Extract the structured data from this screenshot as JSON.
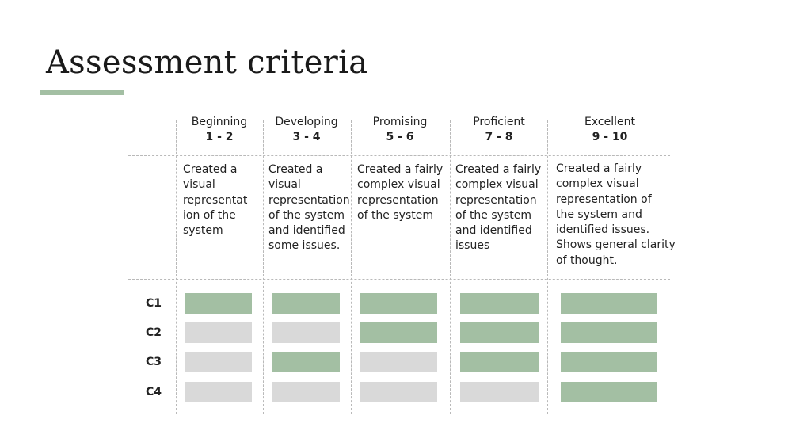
{
  "title": "Assessment criteria",
  "colors": {
    "accent": "#a3bfa3",
    "met": "#a3bfa3",
    "unmet": "#d9d9d9"
  },
  "levels": [
    {
      "label": "Beginning",
      "range": "1 - 2",
      "description": "Created a\nvisual\nrepresentat\nion of the\nsystem"
    },
    {
      "label": "Developing",
      "range": "3 - 4",
      "description": "Created a\nvisual\nrepresentation\nof the system\nand identified\nsome issues."
    },
    {
      "label": "Promising",
      "range": "5 - 6",
      "description": "Created a fairly\ncomplex visual\nrepresentation\nof the system"
    },
    {
      "label": "Proficient",
      "range": "7 - 8",
      "description": "Created a fairly\ncomplex visual\nrepresentation\nof the system\nand identified\nissues"
    },
    {
      "label": "Excellent",
      "range": "9 - 10",
      "description": "Created a fairly\ncomplex visual\nrepresentation of\nthe system and\nidentified issues.\nShows general clarity\nof thought."
    }
  ],
  "criteria": [
    {
      "label": "C1",
      "cells": [
        true,
        true,
        true,
        true,
        true
      ]
    },
    {
      "label": "C2",
      "cells": [
        false,
        false,
        true,
        true,
        true
      ]
    },
    {
      "label": "C3",
      "cells": [
        false,
        true,
        false,
        true,
        true
      ]
    },
    {
      "label": "C4",
      "cells": [
        false,
        false,
        false,
        false,
        true
      ]
    }
  ]
}
